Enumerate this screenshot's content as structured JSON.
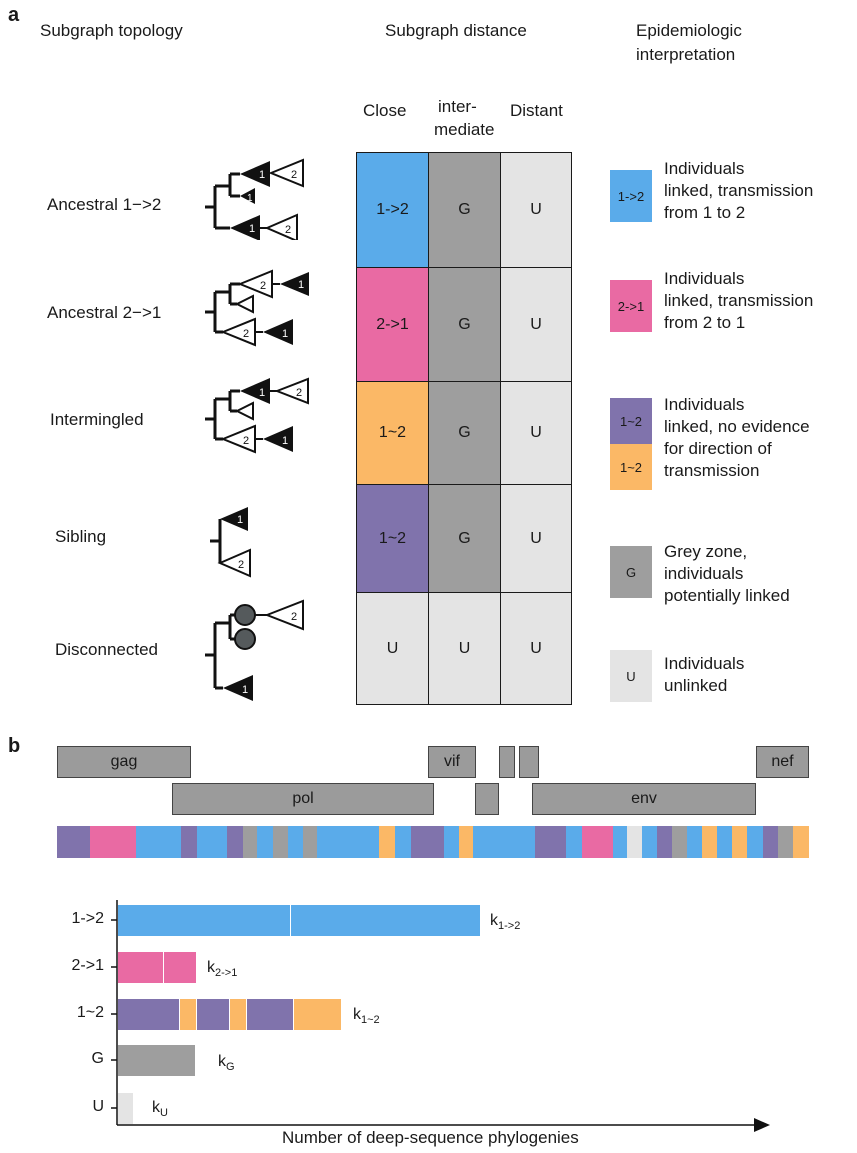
{
  "panel_a": {
    "letter": "a",
    "headers": {
      "topology": "Subgraph topology",
      "distance": "Subgraph distance",
      "interpretation_line1": "Epidemiologic",
      "interpretation_line2": "interpretation"
    },
    "columns": {
      "close": "Close",
      "intermediate_line1": "inter-",
      "intermediate_line2": "mediate",
      "distant": "Distant"
    },
    "rows": [
      {
        "label": "Ancestral 1−>2",
        "cells": [
          "1->2",
          "G",
          "U"
        ]
      },
      {
        "label": "Ancestral 2−>1",
        "cells": [
          "2->1",
          "G",
          "U"
        ]
      },
      {
        "label": "Intermingled",
        "cells": [
          "1~2",
          "G",
          "U"
        ]
      },
      {
        "label": "Sibling",
        "cells": [
          "1~2",
          "G",
          "U"
        ]
      },
      {
        "label": "Disconnected",
        "cells": [
          "U",
          "U",
          "U"
        ]
      }
    ],
    "tree_labels": {
      "one": "1",
      "two": "2"
    },
    "legend": [
      {
        "swatch": "1->2",
        "lines": [
          "Individuals",
          "linked, transmission",
          "from 1 to 2"
        ]
      },
      {
        "swatch": "2->1",
        "lines": [
          "Individuals",
          "linked, transmission",
          "from 2 to 1"
        ]
      },
      {
        "swatch_top": "1~2",
        "swatch_bottom": "1~2",
        "lines": [
          "Individuals",
          "linked, no evidence",
          "for direction of",
          "transmission"
        ]
      },
      {
        "swatch": "G",
        "lines": [
          "Grey zone,",
          "individuals",
          "potentially linked"
        ]
      },
      {
        "swatch": "U",
        "lines": [
          "Individuals",
          "unlinked"
        ]
      }
    ]
  },
  "panel_b": {
    "letter": "b",
    "genes": {
      "gag": "gag",
      "vif": "vif",
      "nef": "nef",
      "pol": "pol",
      "env": "env"
    },
    "xlabel": "Number of deep-sequence phylogenies",
    "y_categories": [
      "1->2",
      "2->1",
      "1~2",
      "G",
      "U"
    ],
    "k_labels": [
      {
        "base": "k",
        "sub": "1->2"
      },
      {
        "base": "k",
        "sub": "2->1"
      },
      {
        "base": "k",
        "sub": "1~2"
      },
      {
        "base": "k",
        "sub": "G"
      },
      {
        "base": "k",
        "sub": "U"
      }
    ]
  },
  "colors": {
    "blue": "#5aabea",
    "pink": "#e96aa3",
    "orange": "#fbb866",
    "purple": "#8073ac",
    "grey": "#9e9e9e",
    "lightgrey": "#e4e4e4"
  },
  "icons": [
    "ancestral-1-2-tree-icon",
    "ancestral-2-1-tree-icon",
    "intermingled-tree-icon",
    "sibling-tree-icon",
    "disconnected-tree-icon"
  ]
}
